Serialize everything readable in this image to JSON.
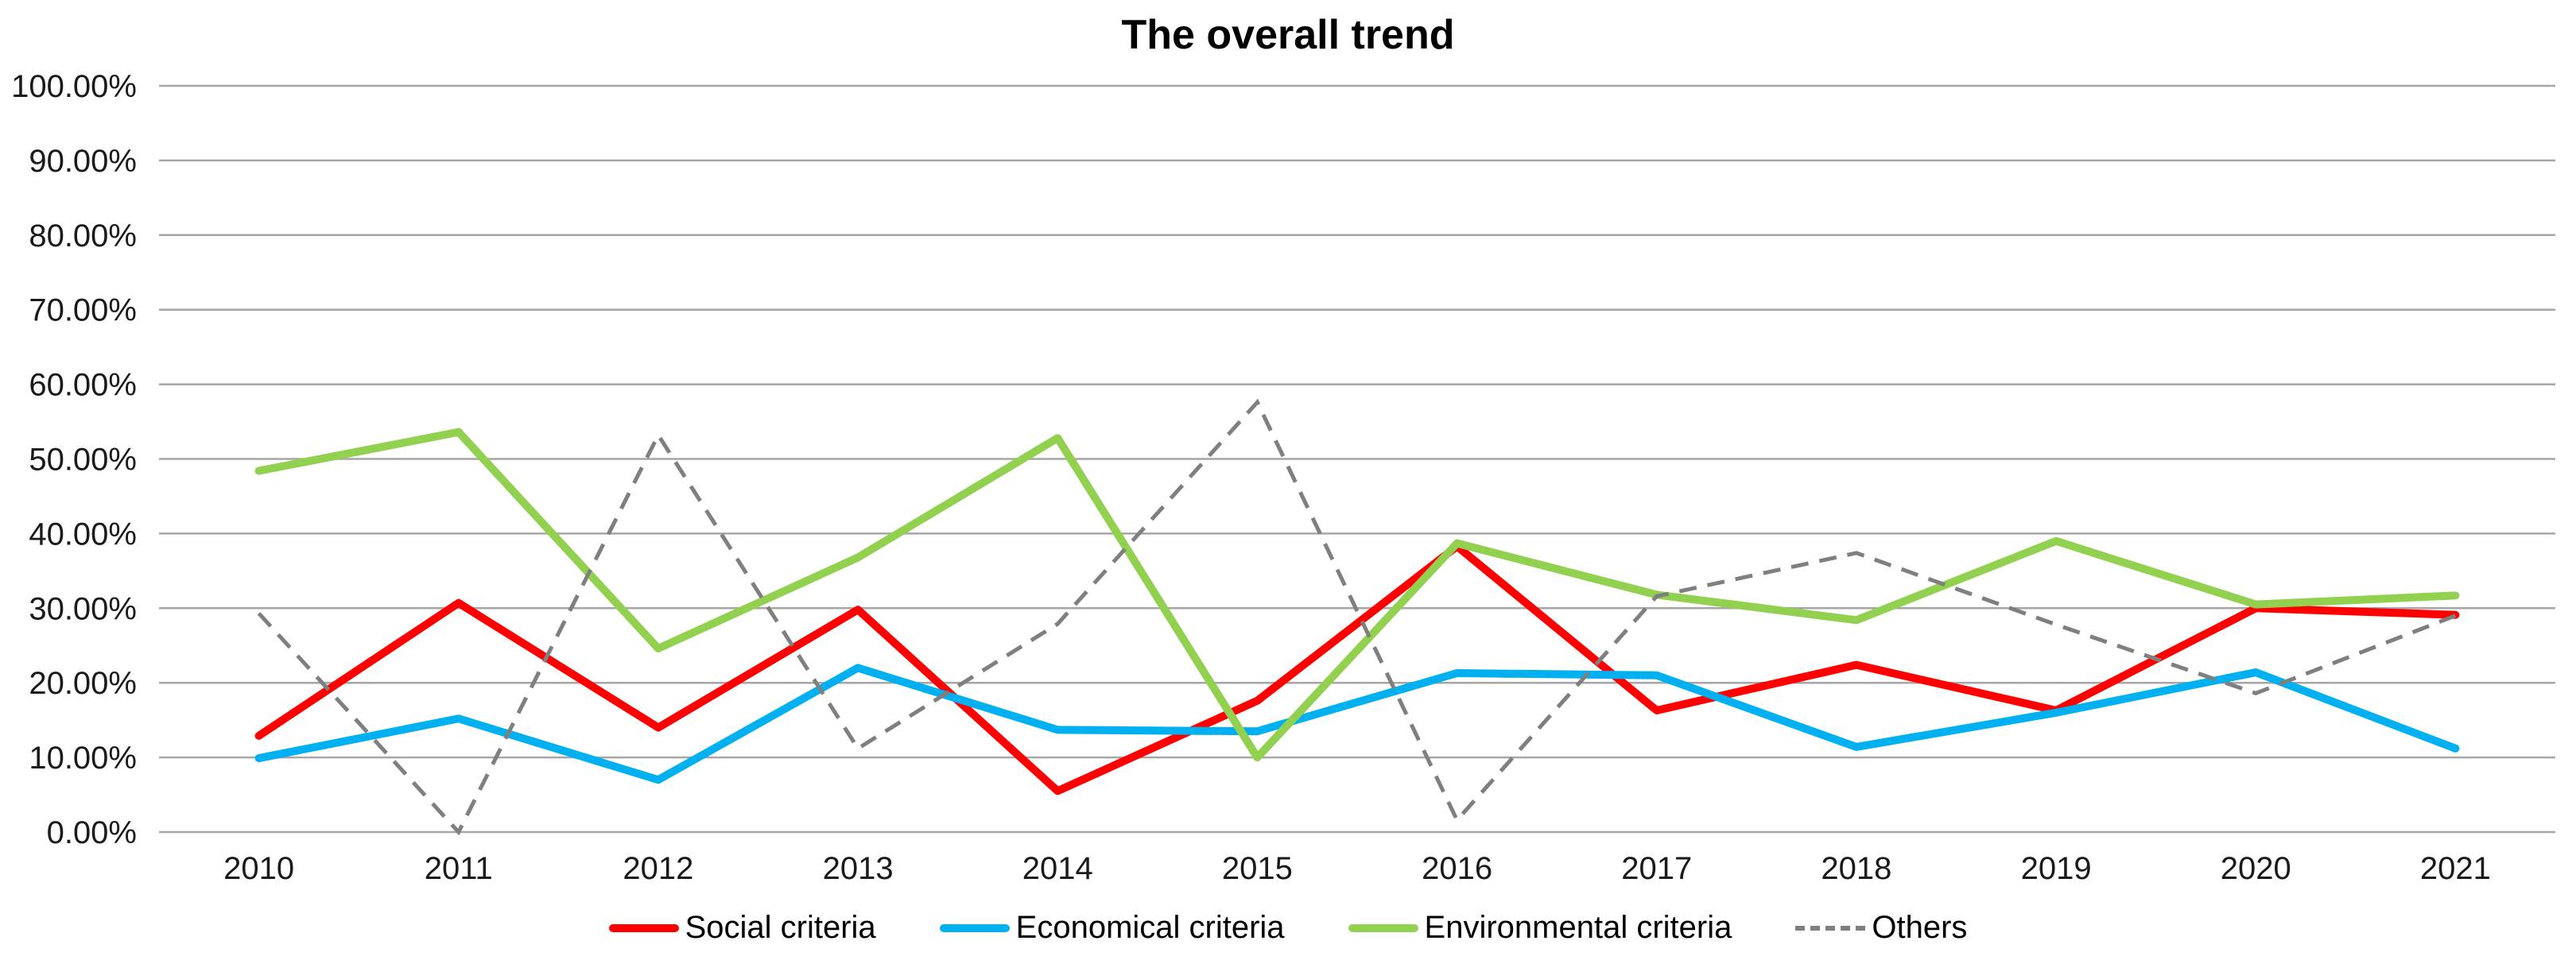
{
  "title": "The overall trend",
  "chart_data": {
    "type": "line",
    "title": "The overall trend",
    "x": [
      "2010",
      "2011",
      "2012",
      "2013",
      "2014",
      "2015",
      "2016",
      "2017",
      "2018",
      "2019",
      "2020",
      "2021"
    ],
    "series": [
      {
        "name": "Social criteria",
        "color": "#FF0000",
        "style": "solid",
        "values": [
          12.9,
          30.7,
          14.0,
          29.8,
          5.5,
          17.6,
          38.3,
          16.3,
          22.4,
          16.3,
          30.0,
          29.1
        ]
      },
      {
        "name": "Economical criteria",
        "color": "#00B0F0",
        "style": "solid",
        "values": [
          9.9,
          15.2,
          7.0,
          22.0,
          13.7,
          13.5,
          21.3,
          21.0,
          11.4,
          16.0,
          21.4,
          11.2
        ]
      },
      {
        "name": "Environmental criteria",
        "color": "#92D050",
        "style": "solid",
        "values": [
          48.4,
          53.6,
          24.6,
          36.8,
          52.8,
          10.0,
          38.7,
          31.8,
          28.4,
          39.0,
          30.5,
          31.7
        ]
      },
      {
        "name": "Others",
        "color": "#7F7F7F",
        "style": "dashed",
        "values": [
          29.3,
          0.0,
          53.2,
          11.2,
          27.9,
          57.6,
          1.6,
          31.6,
          37.4,
          27.8,
          18.6,
          29.0
        ]
      }
    ],
    "ylim": [
      0,
      100
    ],
    "ytick_step": 10,
    "ytick_labels": [
      "0.00%",
      "10.00%",
      "20.00%",
      "30.00%",
      "40.00%",
      "50.00%",
      "60.00%",
      "70.00%",
      "80.00%",
      "90.00%",
      "100.00%"
    ],
    "xlabel": "",
    "ylabel": "",
    "grid": "horizontal",
    "gridline_color": "#A6A6A6",
    "legend_position": "bottom"
  }
}
